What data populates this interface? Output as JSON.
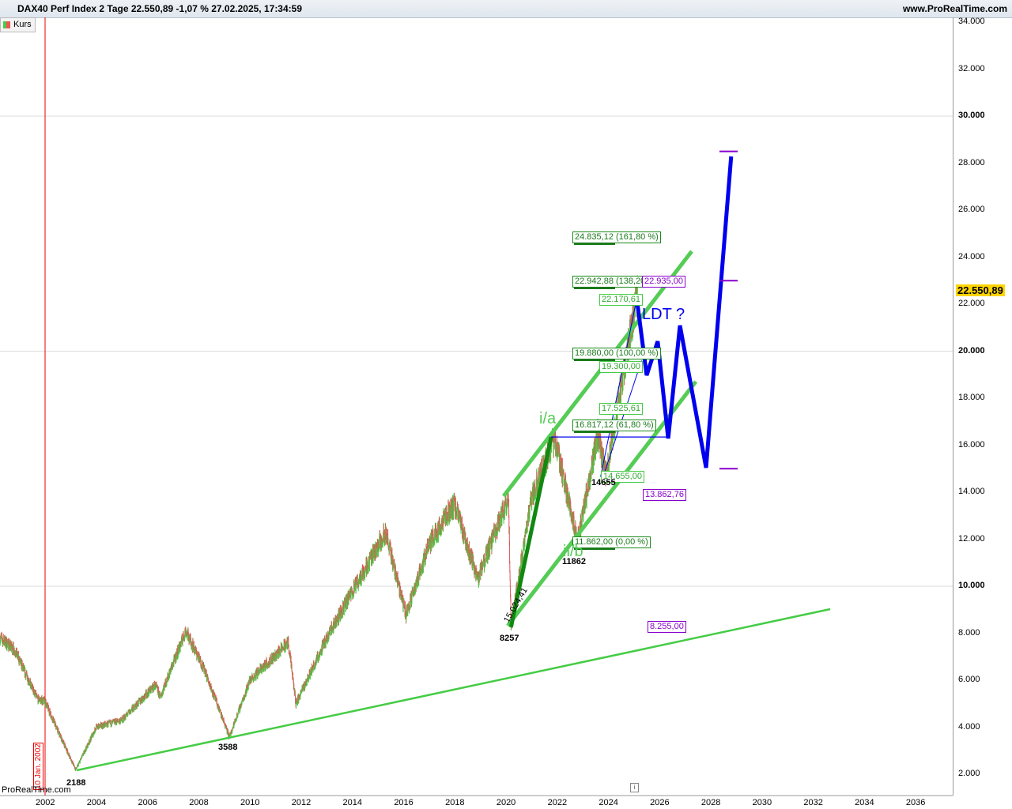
{
  "header": {
    "title": "DAX40 Perf Index 2 Tage 22.550,89 -1,07 % 27.02.2025, 17:34:59",
    "site": "www.ProRealTime.com",
    "legend": "Kurs",
    "watermark": "ProRealTime.com",
    "last_price": "22.550,89",
    "date_marker": "10 Jan. 2002"
  },
  "colors": {
    "up": "#44cc44",
    "down": "#e05555",
    "projection": "#0000ee",
    "channel": "#55cc55",
    "impulse": "#118811",
    "fib": "#1a8a1a",
    "purple": "#8800cc"
  },
  "chart_data": {
    "type": "line",
    "title": "DAX40 Perf Index 2 Tage",
    "ylim": [
      2000,
      34000
    ],
    "xlim": [
      2000.24,
      2037.5
    ],
    "yticks": [
      "34.000",
      "32.000",
      "30.000",
      "28.000",
      "26.000",
      "24.000",
      "22.000",
      "20.000",
      "18.000",
      "16.000",
      "14.000",
      "12.000",
      "10.000",
      "8.000",
      "6.000",
      "4.000",
      "2.000"
    ],
    "xticks": [
      "2002",
      "2004",
      "2006",
      "2008",
      "2010",
      "2012",
      "2014",
      "2016",
      "2018",
      "2020",
      "2022",
      "2024",
      "2026",
      "2028",
      "2030",
      "2032",
      "2034",
      "2036"
    ],
    "price_pivots": [
      [
        2000.24,
        7800
      ],
      [
        2000.8,
        7300
      ],
      [
        2001.7,
        5200
      ],
      [
        2002.0,
        5100
      ],
      [
        2002.6,
        3600
      ],
      [
        2003.2,
        2188
      ],
      [
        2004.0,
        4000
      ],
      [
        2005.0,
        4300
      ],
      [
        2006.3,
        5800
      ],
      [
        2006.5,
        5300
      ],
      [
        2007.5,
        8100
      ],
      [
        2008.2,
        6500
      ],
      [
        2009.2,
        3588
      ],
      [
        2010.0,
        6000
      ],
      [
        2011.5,
        7600
      ],
      [
        2011.8,
        5000
      ],
      [
        2013.0,
        7800
      ],
      [
        2015.3,
        12300
      ],
      [
        2016.1,
        8800
      ],
      [
        2017.0,
        11800
      ],
      [
        2018.0,
        13500
      ],
      [
        2018.9,
        10300
      ],
      [
        2020.1,
        13800
      ],
      [
        2020.2,
        8257
      ],
      [
        2021.0,
        13800
      ],
      [
        2021.9,
        16300
      ],
      [
        2022.8,
        11862
      ],
      [
        2023.6,
        16500
      ],
      [
        2023.9,
        14655
      ],
      [
        2024.5,
        18500
      ],
      [
        2025.15,
        22550
      ]
    ],
    "projection": [
      [
        2025.1,
        22336
      ],
      [
        2025.5,
        18975
      ],
      [
        2025.93,
        20420
      ],
      [
        2026.34,
        16286
      ],
      [
        2026.8,
        21092
      ],
      [
        2027.82,
        15042
      ],
      [
        2028.8,
        28286
      ]
    ],
    "support_line": [
      [
        2003.24,
        2168
      ],
      [
        2032.67,
        9025
      ]
    ],
    "channel_upper": [
      [
        2019.91,
        13832
      ],
      [
        2027.26,
        24252
      ]
    ],
    "channel_lower": [
      [
        2020.07,
        8319
      ],
      [
        2027.42,
        18706
      ]
    ],
    "impulse": [
      [
        2020.2,
        8257
      ],
      [
        2021.77,
        16350
      ]
    ],
    "targets": [
      28500,
      23000,
      15000
    ],
    "fib_levels": [
      {
        "label": "24.835,12 (161,80 %)",
        "value": 24835,
        "style": "g"
      },
      {
        "label": "22.942,88 (138,20",
        "value": 22943,
        "style": "g"
      },
      {
        "label": "22.935,00",
        "value": 22935,
        "style": "p"
      },
      {
        "label": "22.170,61",
        "value": 22170,
        "style": "lg"
      },
      {
        "label": "19.880,00 (100,00 %)",
        "value": 19880,
        "style": "g"
      },
      {
        "label": "19.300,00",
        "value": 19300,
        "style": "lg"
      },
      {
        "label": "17.525,61",
        "value": 17525,
        "style": "lg"
      },
      {
        "label": "16.817,12 (61,80 %)",
        "value": 16817,
        "style": "g"
      },
      {
        "label": "14.655,00",
        "value": 14655,
        "style": "lg"
      },
      {
        "label": "13.862,76",
        "value": 13863,
        "style": "p"
      },
      {
        "label": "11.862,00 (0,00 %)",
        "value": 11862,
        "style": "g"
      },
      {
        "label": "8.255,00",
        "value": 8255,
        "style": "p"
      }
    ],
    "annotations": {
      "low1": "2188",
      "low2": "3588",
      "low3": "8257",
      "low4": "11862",
      "low5": "14655",
      "wave_a": "i/a",
      "wave_b": "ii/b",
      "ldt": "LDT ?",
      "impulse_len": "15.024,41"
    }
  }
}
